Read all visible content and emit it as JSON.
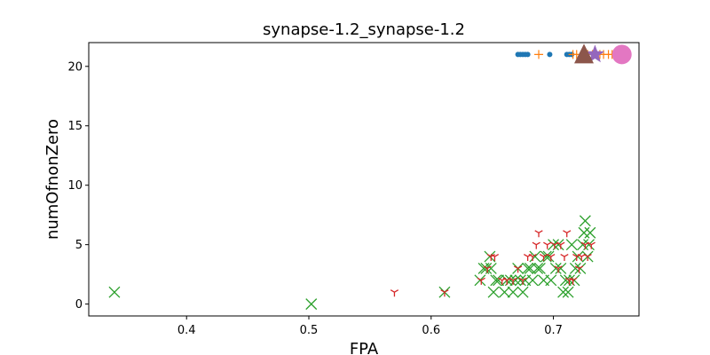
{
  "chart_data": {
    "type": "scatter",
    "title": "synapse-1.2_synapse-1.2",
    "xlabel": "FPA",
    "ylabel": "numOfnonZero",
    "xlim": [
      0.32,
      0.77
    ],
    "ylim": [
      -1,
      22
    ],
    "xticks": [
      "0.4",
      "0.5",
      "0.6",
      "0.7"
    ],
    "yticks": [
      "0",
      "5",
      "10",
      "15",
      "20"
    ],
    "grid": false,
    "legend": "none",
    "series": [
      {
        "marker": "dot",
        "color": "#1f77b4",
        "points": [
          [
            0.671,
            21
          ],
          [
            0.673,
            21
          ],
          [
            0.675,
            21
          ],
          [
            0.677,
            21
          ],
          [
            0.679,
            21
          ],
          [
            0.697,
            21
          ],
          [
            0.711,
            21
          ],
          [
            0.713,
            21
          ],
          [
            0.715,
            21
          ]
        ]
      },
      {
        "marker": "plus",
        "color": "#ff7f0e",
        "points": [
          [
            0.688,
            21
          ],
          [
            0.716,
            21
          ],
          [
            0.719,
            21
          ],
          [
            0.728,
            21
          ],
          [
            0.732,
            21
          ],
          [
            0.738,
            21
          ],
          [
            0.741,
            21
          ],
          [
            0.745,
            21
          ],
          [
            0.748,
            21
          ]
        ]
      },
      {
        "marker": "x",
        "color": "#2ca02c",
        "points": [
          [
            0.341,
            1
          ],
          [
            0.502,
            0
          ],
          [
            0.611,
            1
          ],
          [
            0.64,
            2
          ],
          [
            0.643,
            3
          ],
          [
            0.645,
            3
          ],
          [
            0.648,
            4
          ],
          [
            0.649,
            3
          ],
          [
            0.651,
            1
          ],
          [
            0.653,
            2
          ],
          [
            0.655,
            2
          ],
          [
            0.66,
            1
          ],
          [
            0.662,
            2
          ],
          [
            0.665,
            2
          ],
          [
            0.667,
            1
          ],
          [
            0.669,
            2
          ],
          [
            0.671,
            3
          ],
          [
            0.673,
            2
          ],
          [
            0.675,
            1
          ],
          [
            0.677,
            2
          ],
          [
            0.679,
            3
          ],
          [
            0.681,
            3
          ],
          [
            0.683,
            2
          ],
          [
            0.685,
            4
          ],
          [
            0.687,
            3
          ],
          [
            0.689,
            3
          ],
          [
            0.692,
            2
          ],
          [
            0.694,
            4
          ],
          [
            0.696,
            4
          ],
          [
            0.698,
            2
          ],
          [
            0.7,
            5
          ],
          [
            0.702,
            3
          ],
          [
            0.704,
            5
          ],
          [
            0.706,
            3
          ],
          [
            0.708,
            1
          ],
          [
            0.71,
            2
          ],
          [
            0.712,
            1
          ],
          [
            0.713,
            2
          ],
          [
            0.715,
            5
          ],
          [
            0.717,
            2
          ],
          [
            0.718,
            3
          ],
          [
            0.72,
            4
          ],
          [
            0.722,
            3
          ],
          [
            0.724,
            5
          ],
          [
            0.725,
            6
          ],
          [
            0.726,
            7
          ],
          [
            0.728,
            4
          ],
          [
            0.729,
            5
          ],
          [
            0.73,
            6
          ]
        ]
      },
      {
        "marker": "tri_down",
        "color": "#d62728",
        "points": [
          [
            0.57,
            1
          ],
          [
            0.611,
            1
          ],
          [
            0.641,
            2
          ],
          [
            0.646,
            3
          ],
          [
            0.649,
            4
          ],
          [
            0.652,
            4
          ],
          [
            0.658,
            2
          ],
          [
            0.662,
            2
          ],
          [
            0.667,
            2
          ],
          [
            0.671,
            3
          ],
          [
            0.675,
            2
          ],
          [
            0.679,
            4
          ],
          [
            0.683,
            4
          ],
          [
            0.686,
            5
          ],
          [
            0.688,
            6
          ],
          [
            0.692,
            4
          ],
          [
            0.695,
            5
          ],
          [
            0.698,
            4
          ],
          [
            0.701,
            5
          ],
          [
            0.704,
            3
          ],
          [
            0.706,
            5
          ],
          [
            0.709,
            4
          ],
          [
            0.711,
            6
          ],
          [
            0.713,
            2
          ],
          [
            0.716,
            2
          ],
          [
            0.719,
            4
          ],
          [
            0.721,
            3
          ],
          [
            0.723,
            4
          ],
          [
            0.726,
            5
          ],
          [
            0.728,
            4
          ],
          [
            0.731,
            5
          ]
        ]
      },
      {
        "marker": "star",
        "color": "#9467bd",
        "points": [
          [
            0.734,
            21
          ]
        ]
      },
      {
        "marker": "triangle",
        "color": "#8c564b",
        "points": [
          [
            0.725,
            21
          ]
        ]
      },
      {
        "marker": "circle",
        "color": "#e377c2",
        "points": [
          [
            0.756,
            21
          ]
        ]
      }
    ]
  }
}
